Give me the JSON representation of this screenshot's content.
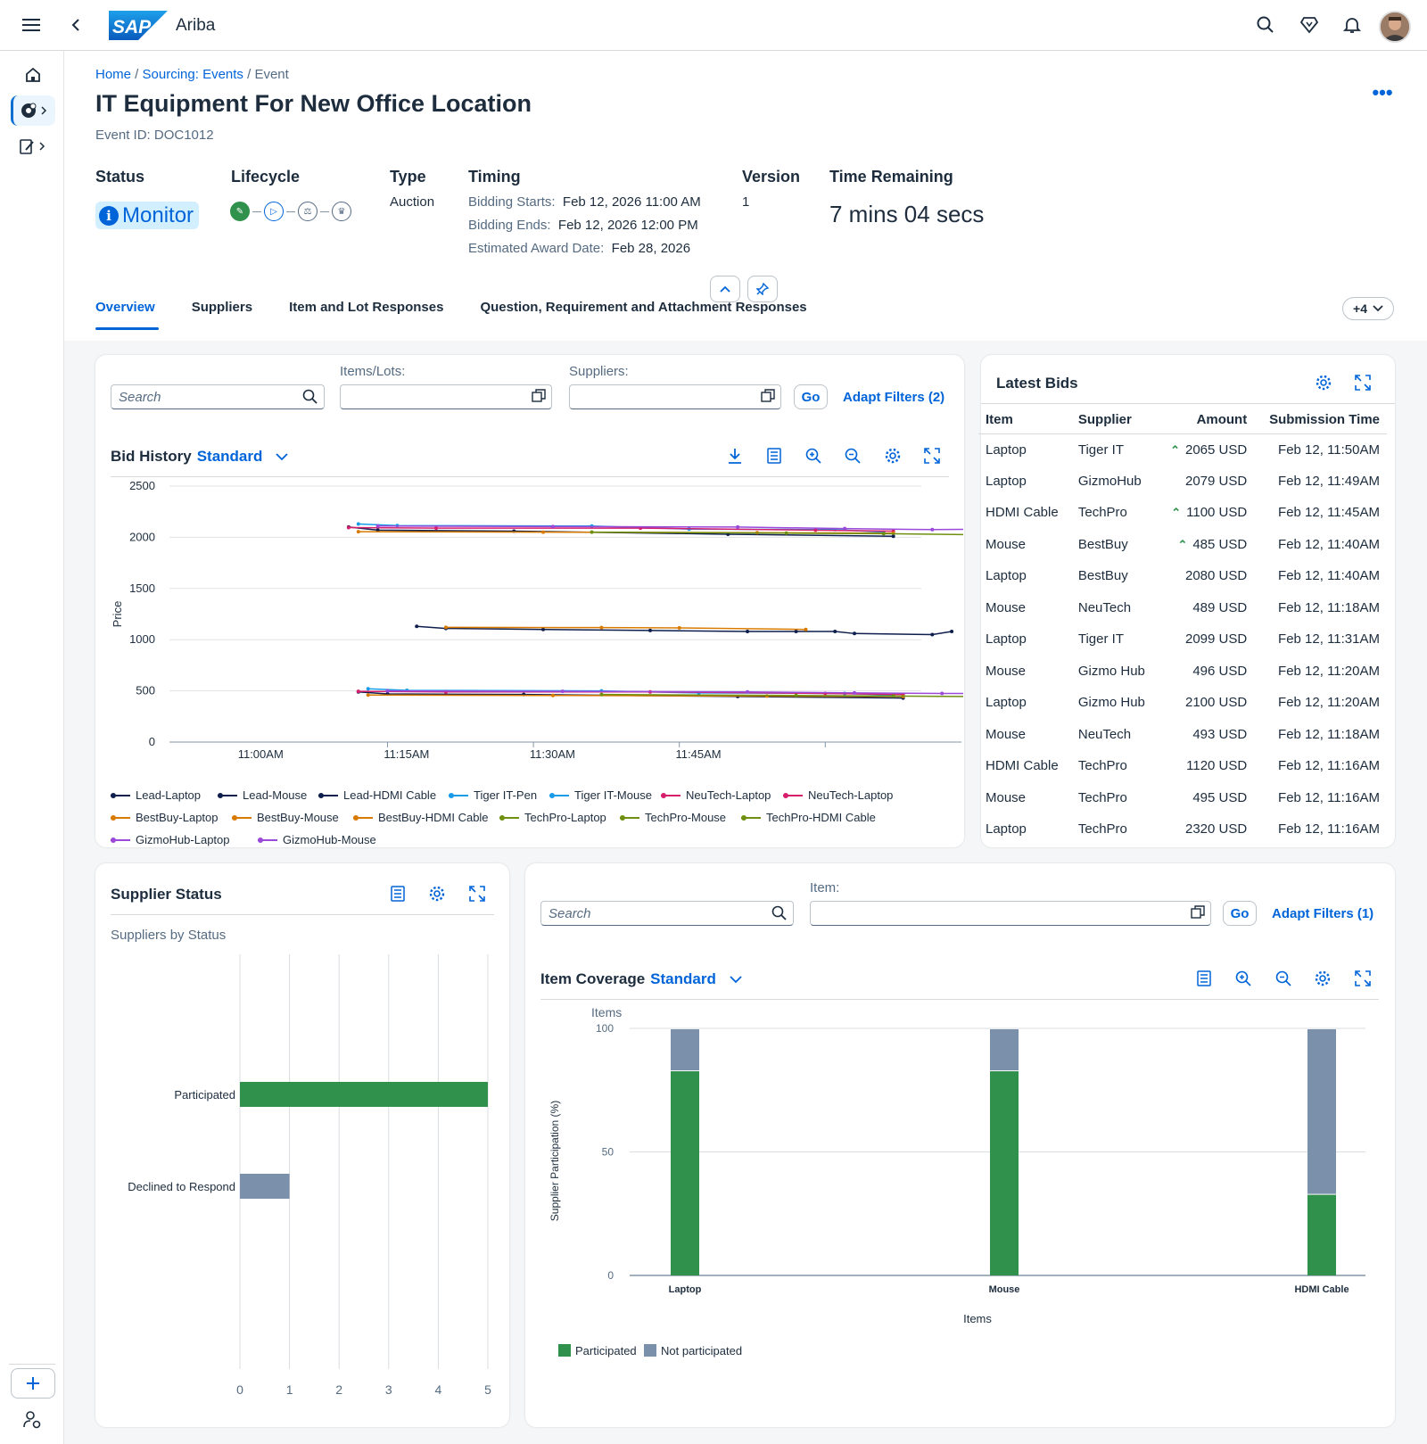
{
  "app": {
    "brand": "SAP",
    "name": "Ariba"
  },
  "breadcrumb": {
    "home": "Home",
    "events": "Sourcing: Events",
    "current": "Event"
  },
  "page": {
    "title": "IT Equipment For New Office Location",
    "event_id": "Event ID: DOC1012"
  },
  "header": {
    "status_label": "Status",
    "status_value": "Monitor",
    "lifecycle_label": "Lifecycle",
    "type_label": "Type",
    "type_value": "Auction",
    "timing_label": "Timing",
    "bidding_starts_label": "Bidding Starts:",
    "bidding_starts": "Feb 12, 2026 11:00 AM",
    "bidding_ends_label": "Bidding Ends:",
    "bidding_ends": "Feb 12, 2026 12:00 PM",
    "award_label": "Estimated Award Date:",
    "award_date": "Feb 28, 2026",
    "version_label": "Version",
    "version_value": "1",
    "time_remaining_label": "Time Remaining",
    "time_remaining": "7 mins 04 secs"
  },
  "tabs": [
    "Overview",
    "Suppliers",
    "Item and Lot Responses",
    "Question, Requirement and Attachment Responses"
  ],
  "more_tabs": "+4",
  "bid_filters": {
    "search_placeholder": "Search",
    "items_label": "Items/Lots:",
    "suppliers_label": "Suppliers:",
    "go": "Go",
    "adapt": "Adapt Filters (2)"
  },
  "bid_history": {
    "title": "Bid History",
    "variant": "Standard"
  },
  "chart_data": [
    {
      "type": "line",
      "title": "Bid History",
      "ylabel": "Price",
      "ylim": [
        0,
        2500
      ],
      "yticks": [
        "2500",
        "2000",
        "1500",
        "1000",
        "500",
        "0"
      ],
      "xticks": [
        "11:00AM",
        "11:15AM",
        "11:30AM",
        "11:45AM"
      ],
      "series": [
        {
          "name": "Lead-Laptop",
          "color": "#0e1f4d",
          "points": [
            [
              0,
              2100
            ],
            [
              3,
              2070
            ],
            [
              17,
              2060
            ],
            [
              39,
              2030
            ],
            [
              56,
              2010
            ]
          ]
        },
        {
          "name": "Lead-Mouse",
          "color": "#0e1f4d",
          "points": [
            [
              1,
              490
            ],
            [
              4,
              470
            ],
            [
              18,
              465
            ],
            [
              40,
              445
            ],
            [
              57,
              430
            ]
          ]
        },
        {
          "name": "Lead-HDMI Cable",
          "color": "#0e1f4d",
          "points": [
            [
              7,
              1130
            ],
            [
              10,
              1110
            ],
            [
              20,
              1100
            ],
            [
              31,
              1090
            ],
            [
              41,
              1080
            ],
            [
              46,
              1080
            ],
            [
              50,
              1080
            ],
            [
              52,
              1060
            ],
            [
              60,
              1050
            ],
            [
              62,
              1080
            ]
          ]
        },
        {
          "name": "Tiger IT-Pen",
          "color": "#1a9be8",
          "points": [
            [
              1,
              2130
            ],
            [
              5,
              2115
            ],
            [
              25,
              2110
            ],
            [
              35,
              2080
            ],
            [
              50,
              2075
            ],
            [
              55,
              2050
            ]
          ]
        },
        {
          "name": "Tiger IT-Mouse",
          "color": "#1a9be8",
          "points": [
            [
              2,
              520
            ],
            [
              6,
              505
            ],
            [
              26,
              500
            ],
            [
              36,
              480
            ],
            [
              51,
              475
            ],
            [
              56,
              460
            ]
          ]
        },
        {
          "name": "NeuTech-Laptop",
          "color": "#d61e6d",
          "points": [
            [
              0,
              2095
            ],
            [
              9,
              2090
            ],
            [
              30,
              2090
            ],
            [
              48,
              2070
            ],
            [
              56,
              2060
            ]
          ]
        },
        {
          "name": "NeuTech-Laptop",
          "color": "#d61e6d",
          "points": [
            [
              1,
              495
            ],
            [
              10,
              490
            ],
            [
              31,
              490
            ],
            [
              49,
              475
            ],
            [
              57,
              465
            ]
          ]
        },
        {
          "name": "BestBuy-Laptop",
          "color": "#d97a00",
          "points": [
            [
              1,
              2055
            ],
            [
              20,
              2050
            ],
            [
              42,
              2045
            ],
            [
              56,
              2040
            ]
          ]
        },
        {
          "name": "BestBuy-Mouse",
          "color": "#d97a00",
          "points": [
            [
              2,
              460
            ],
            [
              21,
              455
            ],
            [
              43,
              450
            ],
            [
              57,
              445
            ]
          ]
        },
        {
          "name": "BestBuy-HDMI Cable",
          "color": "#d97a00",
          "points": [
            [
              10,
              1120
            ],
            [
              26,
              1118
            ],
            [
              34,
              1115
            ],
            [
              47,
              1100
            ]
          ]
        },
        {
          "name": "TechPro-Laptop",
          "color": "#6f8f10",
          "points": [
            [
              25,
              2050
            ],
            [
              45,
              2040
            ],
            [
              55,
              2035
            ],
            [
              70,
              2020
            ]
          ]
        },
        {
          "name": "TechPro-Mouse",
          "color": "#6f8f10",
          "points": [
            [
              26,
              465
            ],
            [
              46,
              455
            ],
            [
              56,
              450
            ],
            [
              71,
              440
            ]
          ]
        },
        {
          "name": "TechPro-HDMI Cable",
          "color": "#6f8f10",
          "points": []
        },
        {
          "name": "GizmoHub-Laptop",
          "color": "#9b49d9",
          "points": [
            [
              3,
              2110
            ],
            [
              21,
              2105
            ],
            [
              40,
              2100
            ],
            [
              51,
              2085
            ],
            [
              60,
              2075
            ],
            [
              66,
              2080
            ]
          ]
        },
        {
          "name": "GizmoHub-Mouse",
          "color": "#9b49d9",
          "points": [
            [
              4,
              500
            ],
            [
              22,
              495
            ],
            [
              41,
              490
            ],
            [
              52,
              480
            ],
            [
              61,
              475
            ],
            [
              67,
              475
            ]
          ]
        }
      ]
    },
    {
      "type": "bar",
      "title": "Suppliers by Status",
      "categories": [
        "Participated",
        "Declined to Respond"
      ],
      "values": [
        5,
        1
      ],
      "colors": [
        "#30914c",
        "#7b91ab"
      ],
      "xlim": [
        0,
        5
      ],
      "xticks": [
        "0",
        "1",
        "2",
        "3",
        "4",
        "5"
      ]
    },
    {
      "type": "bar",
      "title": "Item Coverage",
      "xlabel": "Items",
      "ylabel": "Supplier Participation (%)",
      "yaxis_title": "Items",
      "ylim": [
        0,
        100
      ],
      "yticks": [
        "100",
        "50",
        "0"
      ],
      "categories": [
        "Laptop",
        "Mouse",
        "HDMI Cable"
      ],
      "series": [
        {
          "name": "Participated",
          "color": "#30914c",
          "values": [
            83,
            83,
            33
          ]
        },
        {
          "name": "Not participated",
          "color": "#7b91ab",
          "values": [
            17,
            17,
            67
          ]
        }
      ]
    }
  ],
  "latest_bids": {
    "title": "Latest Bids",
    "columns": [
      "Item",
      "Supplier",
      "Amount",
      "Submission Time"
    ],
    "rows": [
      {
        "item": "Laptop",
        "supplier": "Tiger IT",
        "amount": "2065 USD",
        "time": "Feb 12, 11:50AM",
        "up": true
      },
      {
        "item": "Laptop",
        "supplier": "GizmoHub",
        "amount": "2079 USD",
        "time": "Feb 12, 11:49AM",
        "up": false
      },
      {
        "item": "HDMI Cable",
        "supplier": "TechPro",
        "amount": "1100 USD",
        "time": "Feb 12, 11:45AM",
        "up": true
      },
      {
        "item": "Mouse",
        "supplier": "BestBuy",
        "amount": "485 USD",
        "time": "Feb 12, 11:40AM",
        "up": true
      },
      {
        "item": "Laptop",
        "supplier": "BestBuy",
        "amount": "2080 USD",
        "time": "Feb 12, 11:40AM",
        "up": false
      },
      {
        "item": "Mouse",
        "supplier": "NeuTech",
        "amount": "489 USD",
        "time": "Feb 12, 11:18AM",
        "up": false
      },
      {
        "item": "Laptop",
        "supplier": "Tiger IT",
        "amount": "2099 USD",
        "time": "Feb 12, 11:31AM",
        "up": false
      },
      {
        "item": "Mouse",
        "supplier": "Gizmo Hub",
        "amount": "496 USD",
        "time": "Feb 12, 11:20AM",
        "up": false
      },
      {
        "item": "Laptop",
        "supplier": "Gizmo Hub",
        "amount": "2100 USD",
        "time": "Feb 12, 11:20AM",
        "up": false
      },
      {
        "item": "Mouse",
        "supplier": "NeuTech",
        "amount": "493 USD",
        "time": "Feb 12, 11:18AM",
        "up": false
      },
      {
        "item": "HDMI Cable",
        "supplier": "TechPro",
        "amount": "1120 USD",
        "time": "Feb 12, 11:16AM",
        "up": false
      },
      {
        "item": "Mouse",
        "supplier": "TechPro",
        "amount": "495 USD",
        "time": "Feb 12, 11:16AM",
        "up": false
      },
      {
        "item": "Laptop",
        "supplier": "TechPro",
        "amount": "2320 USD",
        "time": "Feb 12, 11:16AM",
        "up": false
      }
    ]
  },
  "supplier_status": {
    "title": "Supplier Status",
    "subtitle": "Suppliers by Status"
  },
  "item_filters": {
    "search_placeholder": "Search",
    "item_label": "Item:",
    "go": "Go",
    "adapt": "Adapt Filters (1)"
  },
  "item_coverage": {
    "title": "Item Coverage",
    "variant": "Standard"
  }
}
